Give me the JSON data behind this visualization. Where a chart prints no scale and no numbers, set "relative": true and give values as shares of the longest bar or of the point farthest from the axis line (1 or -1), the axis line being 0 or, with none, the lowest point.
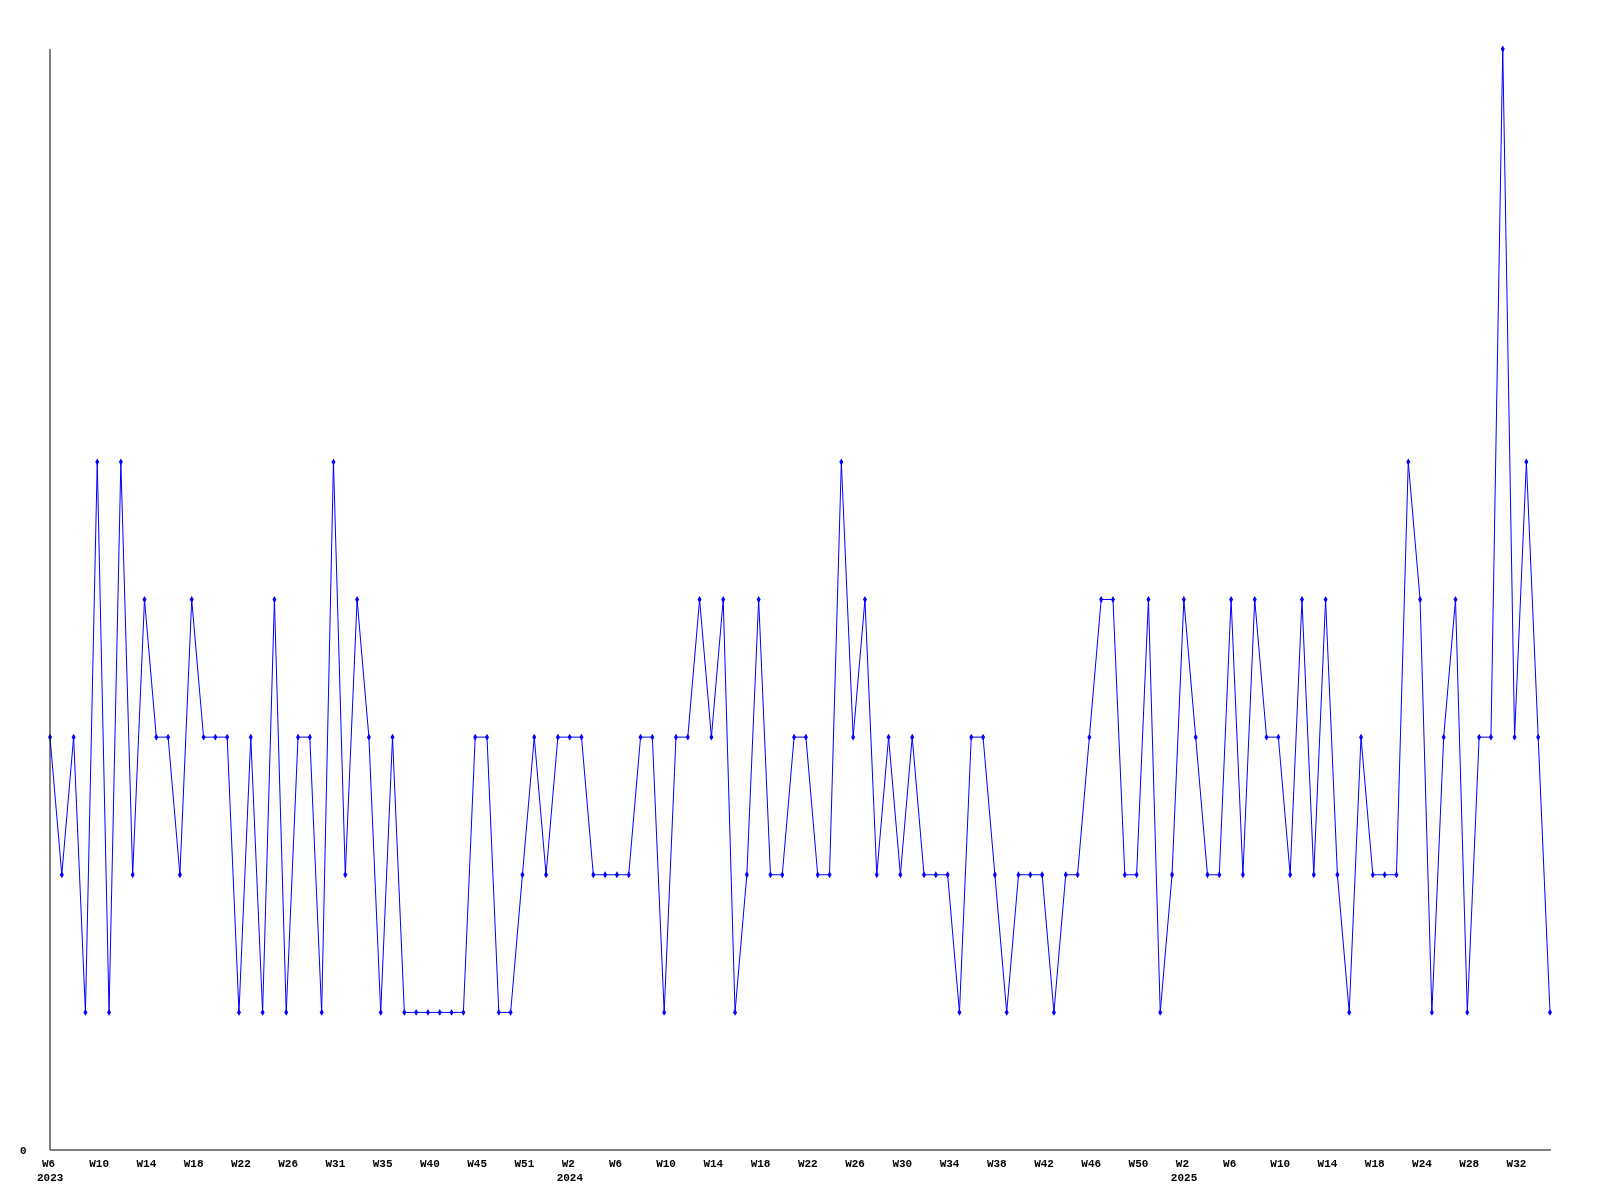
{
  "chart_data": {
    "type": "line",
    "relative": true,
    "color": "#0000ff",
    "marker": "diamond",
    "line_style": "solid",
    "annotations": [
      "0"
    ],
    "categories": [
      "W6\n2023",
      null,
      null,
      null,
      "W10",
      null,
      null,
      null,
      "W14",
      null,
      null,
      null,
      "W18",
      null,
      null,
      null,
      "W22",
      null,
      null,
      null,
      "W26",
      null,
      null,
      null,
      "W31",
      null,
      null,
      null,
      "W35",
      null,
      null,
      null,
      "W40",
      null,
      null,
      null,
      "W45",
      null,
      null,
      null,
      "W51",
      null,
      null,
      null,
      "W2\n2024",
      null,
      null,
      null,
      "W6",
      null,
      null,
      null,
      "W10",
      null,
      null,
      null,
      "W14",
      null,
      null,
      null,
      "W18",
      null,
      null,
      null,
      "W22",
      null,
      null,
      null,
      "W26",
      null,
      null,
      null,
      "W30",
      null,
      null,
      null,
      "W34",
      null,
      null,
      null,
      "W38",
      null,
      null,
      null,
      "W42",
      null,
      null,
      null,
      "W46",
      null,
      null,
      null,
      "W50",
      null,
      null,
      null,
      "W2\n2025",
      null,
      null,
      null,
      "W6",
      null,
      null,
      null,
      "W10",
      null,
      null,
      null,
      "W14",
      null,
      null,
      null,
      "W18",
      null,
      null,
      null,
      "W24",
      null,
      null,
      null,
      "W28",
      null,
      null,
      null,
      "W32",
      null,
      null,
      null
    ],
    "values": [
      0.375,
      0.25,
      0.375,
      0.125,
      0.625,
      0.125,
      0.625,
      0.25,
      0.5,
      0.375,
      0.375,
      0.25,
      0.5,
      0.375,
      0.375,
      0.375,
      0.125,
      0.375,
      0.125,
      0.5,
      0.125,
      0.375,
      0.375,
      0.125,
      0.625,
      0.25,
      0.5,
      0.375,
      0.125,
      0.375,
      0.125,
      0.125,
      0.125,
      0.125,
      0.125,
      0.125,
      0.375,
      0.375,
      0.125,
      0.125,
      0.25,
      0.375,
      0.25,
      0.375,
      0.375,
      0.375,
      0.25,
      0.25,
      0.25,
      0.25,
      0.375,
      0.375,
      0.125,
      0.375,
      0.375,
      0.5,
      0.375,
      0.5,
      0.125,
      0.25,
      0.5,
      0.25,
      0.25,
      0.375,
      0.375,
      0.25,
      0.25,
      0.625,
      0.375,
      0.5,
      0.25,
      0.375,
      0.25,
      0.375,
      0.25,
      0.25,
      0.25,
      0.125,
      0.375,
      0.375,
      0.25,
      0.125,
      0.25,
      0.25,
      0.25,
      0.125,
      0.25,
      0.25,
      0.375,
      0.5,
      0.5,
      0.25,
      0.25,
      0.5,
      0.125,
      0.25,
      0.5,
      0.375,
      0.25,
      0.25,
      0.5,
      0.25,
      0.5,
      0.375,
      0.375,
      0.25,
      0.5,
      0.25,
      0.5,
      0.25,
      0.125,
      0.375,
      0.25,
      0.25,
      0.25,
      0.625,
      0.5,
      0.125,
      0.375,
      0.5,
      0.125,
      0.375,
      0.375,
      1,
      0.375,
      0.625,
      0.375,
      0.125
    ]
  }
}
